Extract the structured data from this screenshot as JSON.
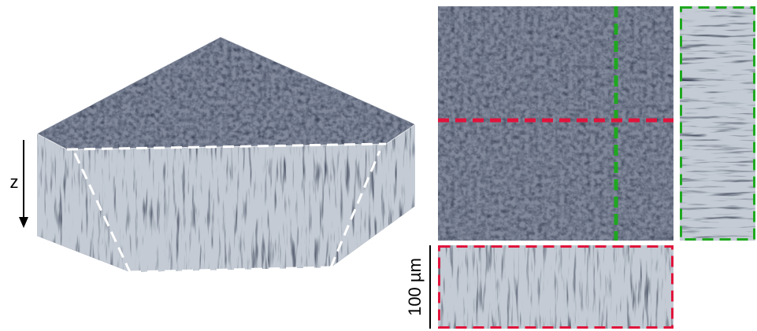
{
  "labels": {
    "axis": "z",
    "scale_bar": "100 µm"
  }
}
